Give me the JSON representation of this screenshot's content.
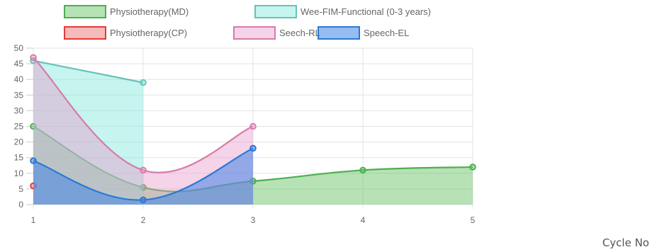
{
  "chart_data": {
    "type": "line",
    "title": "",
    "xlabel": "Cycle No",
    "ylabel": "",
    "x": [
      1,
      2,
      3,
      4,
      5
    ],
    "ylim": [
      0,
      50
    ],
    "y_ticks": [
      0,
      5,
      10,
      15,
      20,
      25,
      30,
      35,
      40,
      45,
      50
    ],
    "x_ticks": [
      1,
      2,
      3,
      4,
      5
    ],
    "grid": true,
    "legend_position": "top",
    "series": [
      {
        "name": "Physiotherapy(MD)",
        "values": [
          25,
          5.5,
          7.5,
          11,
          12
        ],
        "color": "#4caf50",
        "fill": "rgba(95,190,90,0.45)"
      },
      {
        "name": "Wee-FIM-Functional (0-3 years)",
        "values": [
          46,
          39,
          null,
          null,
          null
        ],
        "color": "#66c2b8",
        "fill": "rgba(128,230,220,0.45)"
      },
      {
        "name": "Physiotherapy(CP)",
        "values": [
          6,
          null,
          null,
          null,
          null
        ],
        "color": "#e53935",
        "fill": "rgba(239,140,140,0.6)"
      },
      {
        "name": "Seech-RL",
        "values": [
          47,
          11,
          25,
          null,
          null
        ],
        "color": "#d87ba8",
        "fill": "rgba(230,150,200,0.42)"
      },
      {
        "name": "Speech-EL",
        "values": [
          14,
          1.5,
          18,
          null,
          null
        ],
        "color": "#2979d6",
        "fill": "rgba(66,133,230,0.55)"
      }
    ]
  }
}
